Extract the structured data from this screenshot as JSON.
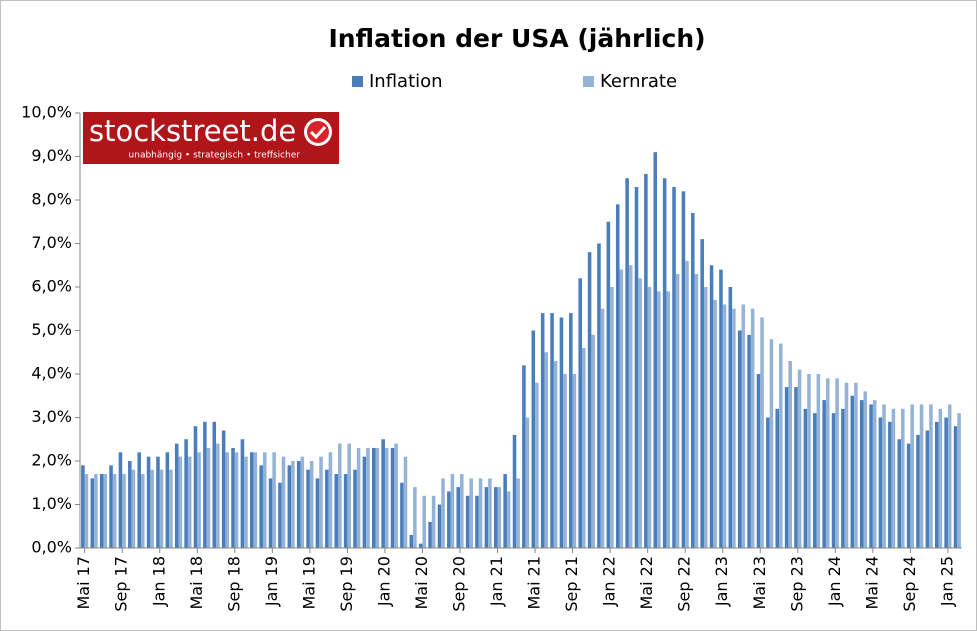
{
  "chart_data": {
    "type": "bar",
    "title": "Inflation der USA (jährlich)",
    "logo": {
      "name": "stockstreet.de",
      "slogan": "unabhängig • strategisch • treffsicher"
    },
    "categories": [
      "Mai 17",
      null,
      null,
      null,
      "Sep 17",
      null,
      null,
      null,
      "Jan 18",
      null,
      null,
      null,
      "Mai 18",
      null,
      null,
      null,
      "Sep 18",
      null,
      null,
      null,
      "Jan 19",
      null,
      null,
      null,
      "Mai 19",
      null,
      null,
      null,
      "Sep 19",
      null,
      null,
      null,
      "Jan 20",
      null,
      null,
      null,
      "Mai 20",
      null,
      null,
      null,
      "Sep 20",
      null,
      null,
      null,
      "Jan 21",
      null,
      null,
      null,
      "Mai 21",
      null,
      null,
      null,
      "Sep 21",
      null,
      null,
      null,
      "Jan 22",
      null,
      null,
      null,
      "Mai 22",
      null,
      null,
      null,
      "Sep 22",
      null,
      null,
      null,
      "Jan 23",
      null,
      null,
      null,
      "Mai 23",
      null,
      null,
      null,
      "Sep 23",
      null,
      null,
      null,
      "Jan 24",
      null,
      null,
      null,
      "Mai 24",
      null,
      null,
      null,
      "Sep 24",
      null,
      null,
      null,
      "Jan 25",
      null
    ],
    "series": [
      {
        "name": "Inflation",
        "color": "#4a7ebb",
        "values": [
          1.9,
          1.6,
          1.7,
          1.9,
          2.2,
          2.0,
          2.2,
          2.1,
          2.1,
          2.2,
          2.4,
          2.5,
          2.8,
          2.9,
          2.9,
          2.7,
          2.3,
          2.5,
          2.2,
          1.9,
          1.6,
          1.5,
          1.9,
          2.0,
          1.8,
          1.6,
          1.8,
          1.7,
          1.7,
          1.8,
          2.1,
          2.3,
          2.5,
          2.3,
          1.5,
          0.3,
          0.1,
          0.6,
          1.0,
          1.3,
          1.4,
          1.2,
          1.2,
          1.4,
          1.4,
          1.7,
          2.6,
          4.2,
          5.0,
          5.4,
          5.4,
          5.3,
          5.4,
          6.2,
          6.8,
          7.0,
          7.5,
          7.9,
          8.5,
          8.3,
          8.6,
          9.1,
          8.5,
          8.3,
          8.2,
          7.7,
          7.1,
          6.5,
          6.4,
          6.0,
          5.0,
          4.9,
          4.0,
          3.0,
          3.2,
          3.7,
          3.7,
          3.2,
          3.1,
          3.4,
          3.1,
          3.2,
          3.5,
          3.4,
          3.3,
          3.0,
          2.9,
          2.5,
          2.4,
          2.6,
          2.7,
          2.9,
          3.0,
          2.8
        ]
      },
      {
        "name": "Kernrate",
        "color": "#95b3d7",
        "values": [
          1.7,
          1.7,
          1.7,
          1.7,
          1.7,
          1.8,
          1.7,
          1.8,
          1.8,
          1.8,
          2.1,
          2.1,
          2.2,
          2.3,
          2.4,
          2.2,
          2.2,
          2.1,
          2.2,
          2.2,
          2.2,
          2.1,
          2.0,
          2.1,
          2.0,
          2.1,
          2.2,
          2.4,
          2.4,
          2.3,
          2.3,
          2.3,
          2.3,
          2.4,
          2.1,
          1.4,
          1.2,
          1.2,
          1.6,
          1.7,
          1.7,
          1.6,
          1.6,
          1.6,
          1.4,
          1.3,
          1.6,
          3.0,
          3.8,
          4.5,
          4.3,
          4.0,
          4.0,
          4.6,
          4.9,
          5.5,
          6.0,
          6.4,
          6.5,
          6.2,
          6.0,
          5.9,
          5.9,
          6.3,
          6.6,
          6.3,
          6.0,
          5.7,
          5.6,
          5.5,
          5.6,
          5.5,
          5.3,
          4.8,
          4.7,
          4.3,
          4.1,
          4.0,
          4.0,
          3.9,
          3.9,
          3.8,
          3.8,
          3.6,
          3.4,
          3.3,
          3.2,
          3.2,
          3.3,
          3.3,
          3.3,
          3.2,
          3.3,
          3.1
        ]
      }
    ],
    "ylim": [
      0,
      10
    ],
    "yticks": [
      {
        "value": 0,
        "label": "0,0%"
      },
      {
        "value": 1,
        "label": "1,0%"
      },
      {
        "value": 2,
        "label": "2,0%"
      },
      {
        "value": 3,
        "label": "3,0%"
      },
      {
        "value": 4,
        "label": "4,0%"
      },
      {
        "value": 5,
        "label": "5,0%"
      },
      {
        "value": 6,
        "label": "6,0%"
      },
      {
        "value": 7,
        "label": "7,0%"
      },
      {
        "value": 8,
        "label": "8,0%"
      },
      {
        "value": 9,
        "label": "9,0%"
      },
      {
        "value": 10,
        "label": "10,0%"
      }
    ],
    "grid": false
  }
}
